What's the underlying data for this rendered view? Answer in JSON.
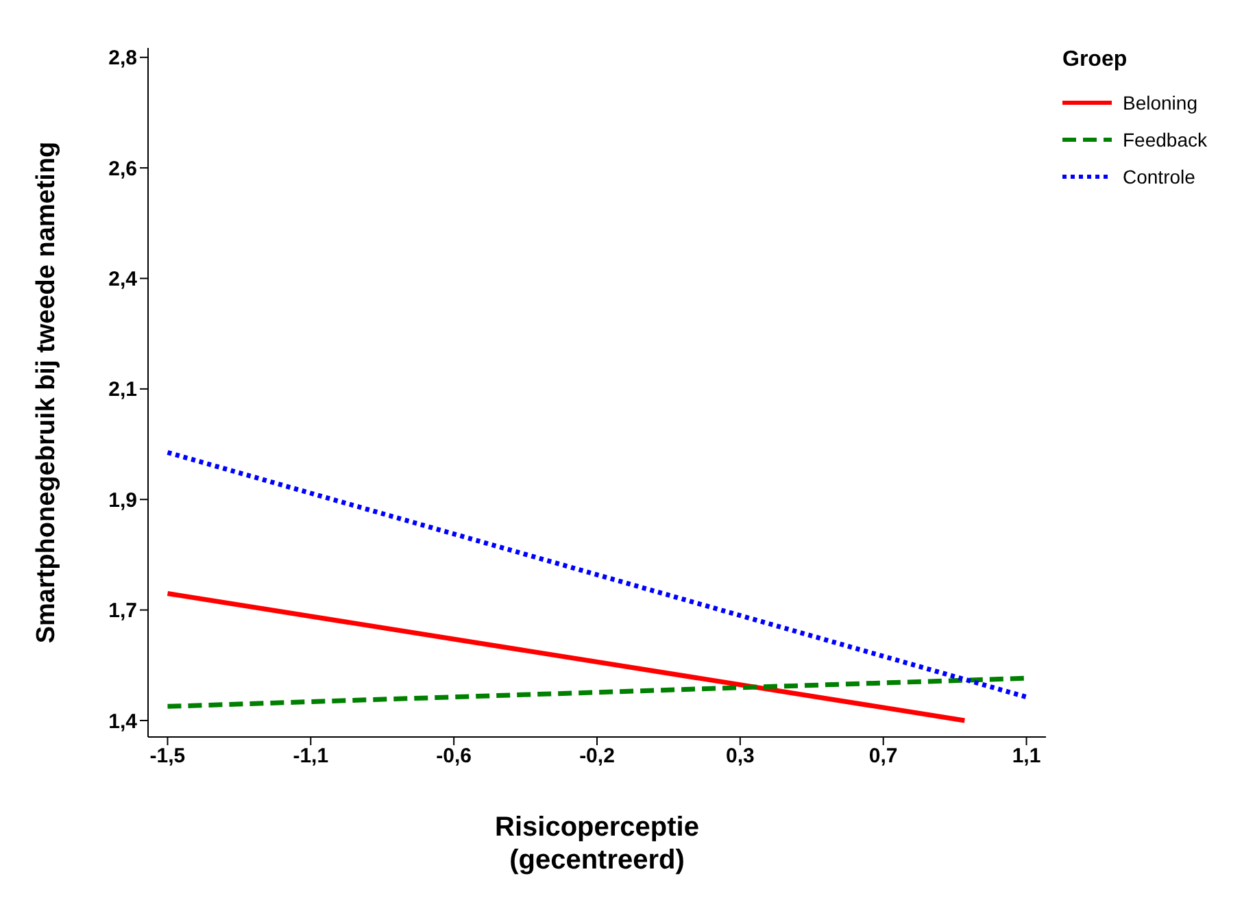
{
  "chart_data": {
    "type": "line",
    "xlabel": "Risicoperceptie\n(gecentreerd)",
    "ylabel": "Smartphonegebruik bij tweede nameting",
    "legend_title": "Groep",
    "legend": "top right",
    "grid": false,
    "marker": "none",
    "xlim": [
      -1.56,
      1.2
    ],
    "xticks": [
      {
        "value": -1.5,
        "label": "-1,5"
      },
      {
        "value": -1.06,
        "label": "-1,1"
      },
      {
        "value": -0.62,
        "label": "-0,6"
      },
      {
        "value": -0.18,
        "label": "-0,2"
      },
      {
        "value": 0.26,
        "label": "0,3"
      },
      {
        "value": 0.7,
        "label": "0,7"
      },
      {
        "value": 1.14,
        "label": "1,1"
      }
    ],
    "ylim": [
      1.385,
      2.85
    ],
    "yticks": [
      {
        "value": 1.42,
        "label": "1,4"
      },
      {
        "value": 1.655,
        "label": "1,7"
      },
      {
        "value": 1.89,
        "label": "1,9"
      },
      {
        "value": 2.125,
        "label": "2,1"
      },
      {
        "value": 2.36,
        "label": "2,4"
      },
      {
        "value": 2.595,
        "label": "2,6"
      },
      {
        "value": 2.83,
        "label": "2,8"
      }
    ],
    "series": [
      {
        "name": "Beloning",
        "color": "#ff0000",
        "line_style": "solid",
        "x": [
          -1.5,
          0.95
        ],
        "values": [
          1.69,
          1.42
        ]
      },
      {
        "name": "Feedback",
        "color": "#008000",
        "line_style": "dashed",
        "x": [
          -1.5,
          1.14
        ],
        "values": [
          1.45,
          1.51
        ]
      },
      {
        "name": "Controle",
        "color": "#0000ff",
        "line_style": "dotted",
        "x": [
          -1.5,
          1.14
        ],
        "values": [
          1.99,
          1.47
        ]
      }
    ]
  }
}
